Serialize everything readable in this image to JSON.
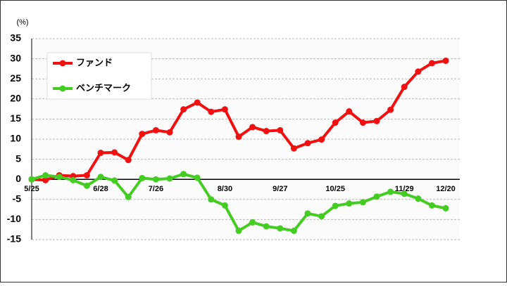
{
  "chart_data": {
    "type": "line",
    "y_label": "(%)",
    "categories": [
      "5/25",
      null,
      null,
      null,
      null,
      "6/28",
      null,
      null,
      null,
      "7/26",
      null,
      null,
      null,
      null,
      "8/30",
      null,
      null,
      null,
      "9/27",
      null,
      null,
      null,
      "10/25",
      null,
      null,
      null,
      null,
      "11/29",
      null,
      null,
      "12/20"
    ],
    "series": [
      {
        "name": "ファンド",
        "color": "#f01010",
        "values": [
          0,
          -0.2,
          1,
          0.8,
          1,
          6.6,
          6.7,
          4.8,
          11.3,
          12.2,
          11.7,
          17.4,
          19.1,
          16.8,
          17.4,
          10.6,
          13,
          12,
          12.2,
          7.7,
          9,
          9.9,
          14.1,
          16.9,
          14.1,
          14.5,
          17.3,
          23,
          26.8,
          28.9,
          29.5
        ]
      },
      {
        "name": "ベンチマーク",
        "color": "#44cc22",
        "values": [
          0,
          1,
          0.6,
          -0.2,
          -1.6,
          0.6,
          -0.3,
          -4.4,
          0.3,
          0,
          0.2,
          1.3,
          0.4,
          -5,
          -6.5,
          -12.8,
          -10.7,
          -11.7,
          -12.2,
          -12.8,
          -8.5,
          -9.2,
          -6.6,
          -6,
          -5.7,
          -4.3,
          -3.1,
          -3.6,
          -4.8,
          -6.5,
          -7.2
        ]
      }
    ],
    "ylim": [
      -15,
      35
    ],
    "yticks": [
      -15,
      -10,
      -5,
      0,
      5,
      10,
      15,
      20,
      25,
      30,
      35
    ],
    "grid": true,
    "legend": "upper left"
  }
}
